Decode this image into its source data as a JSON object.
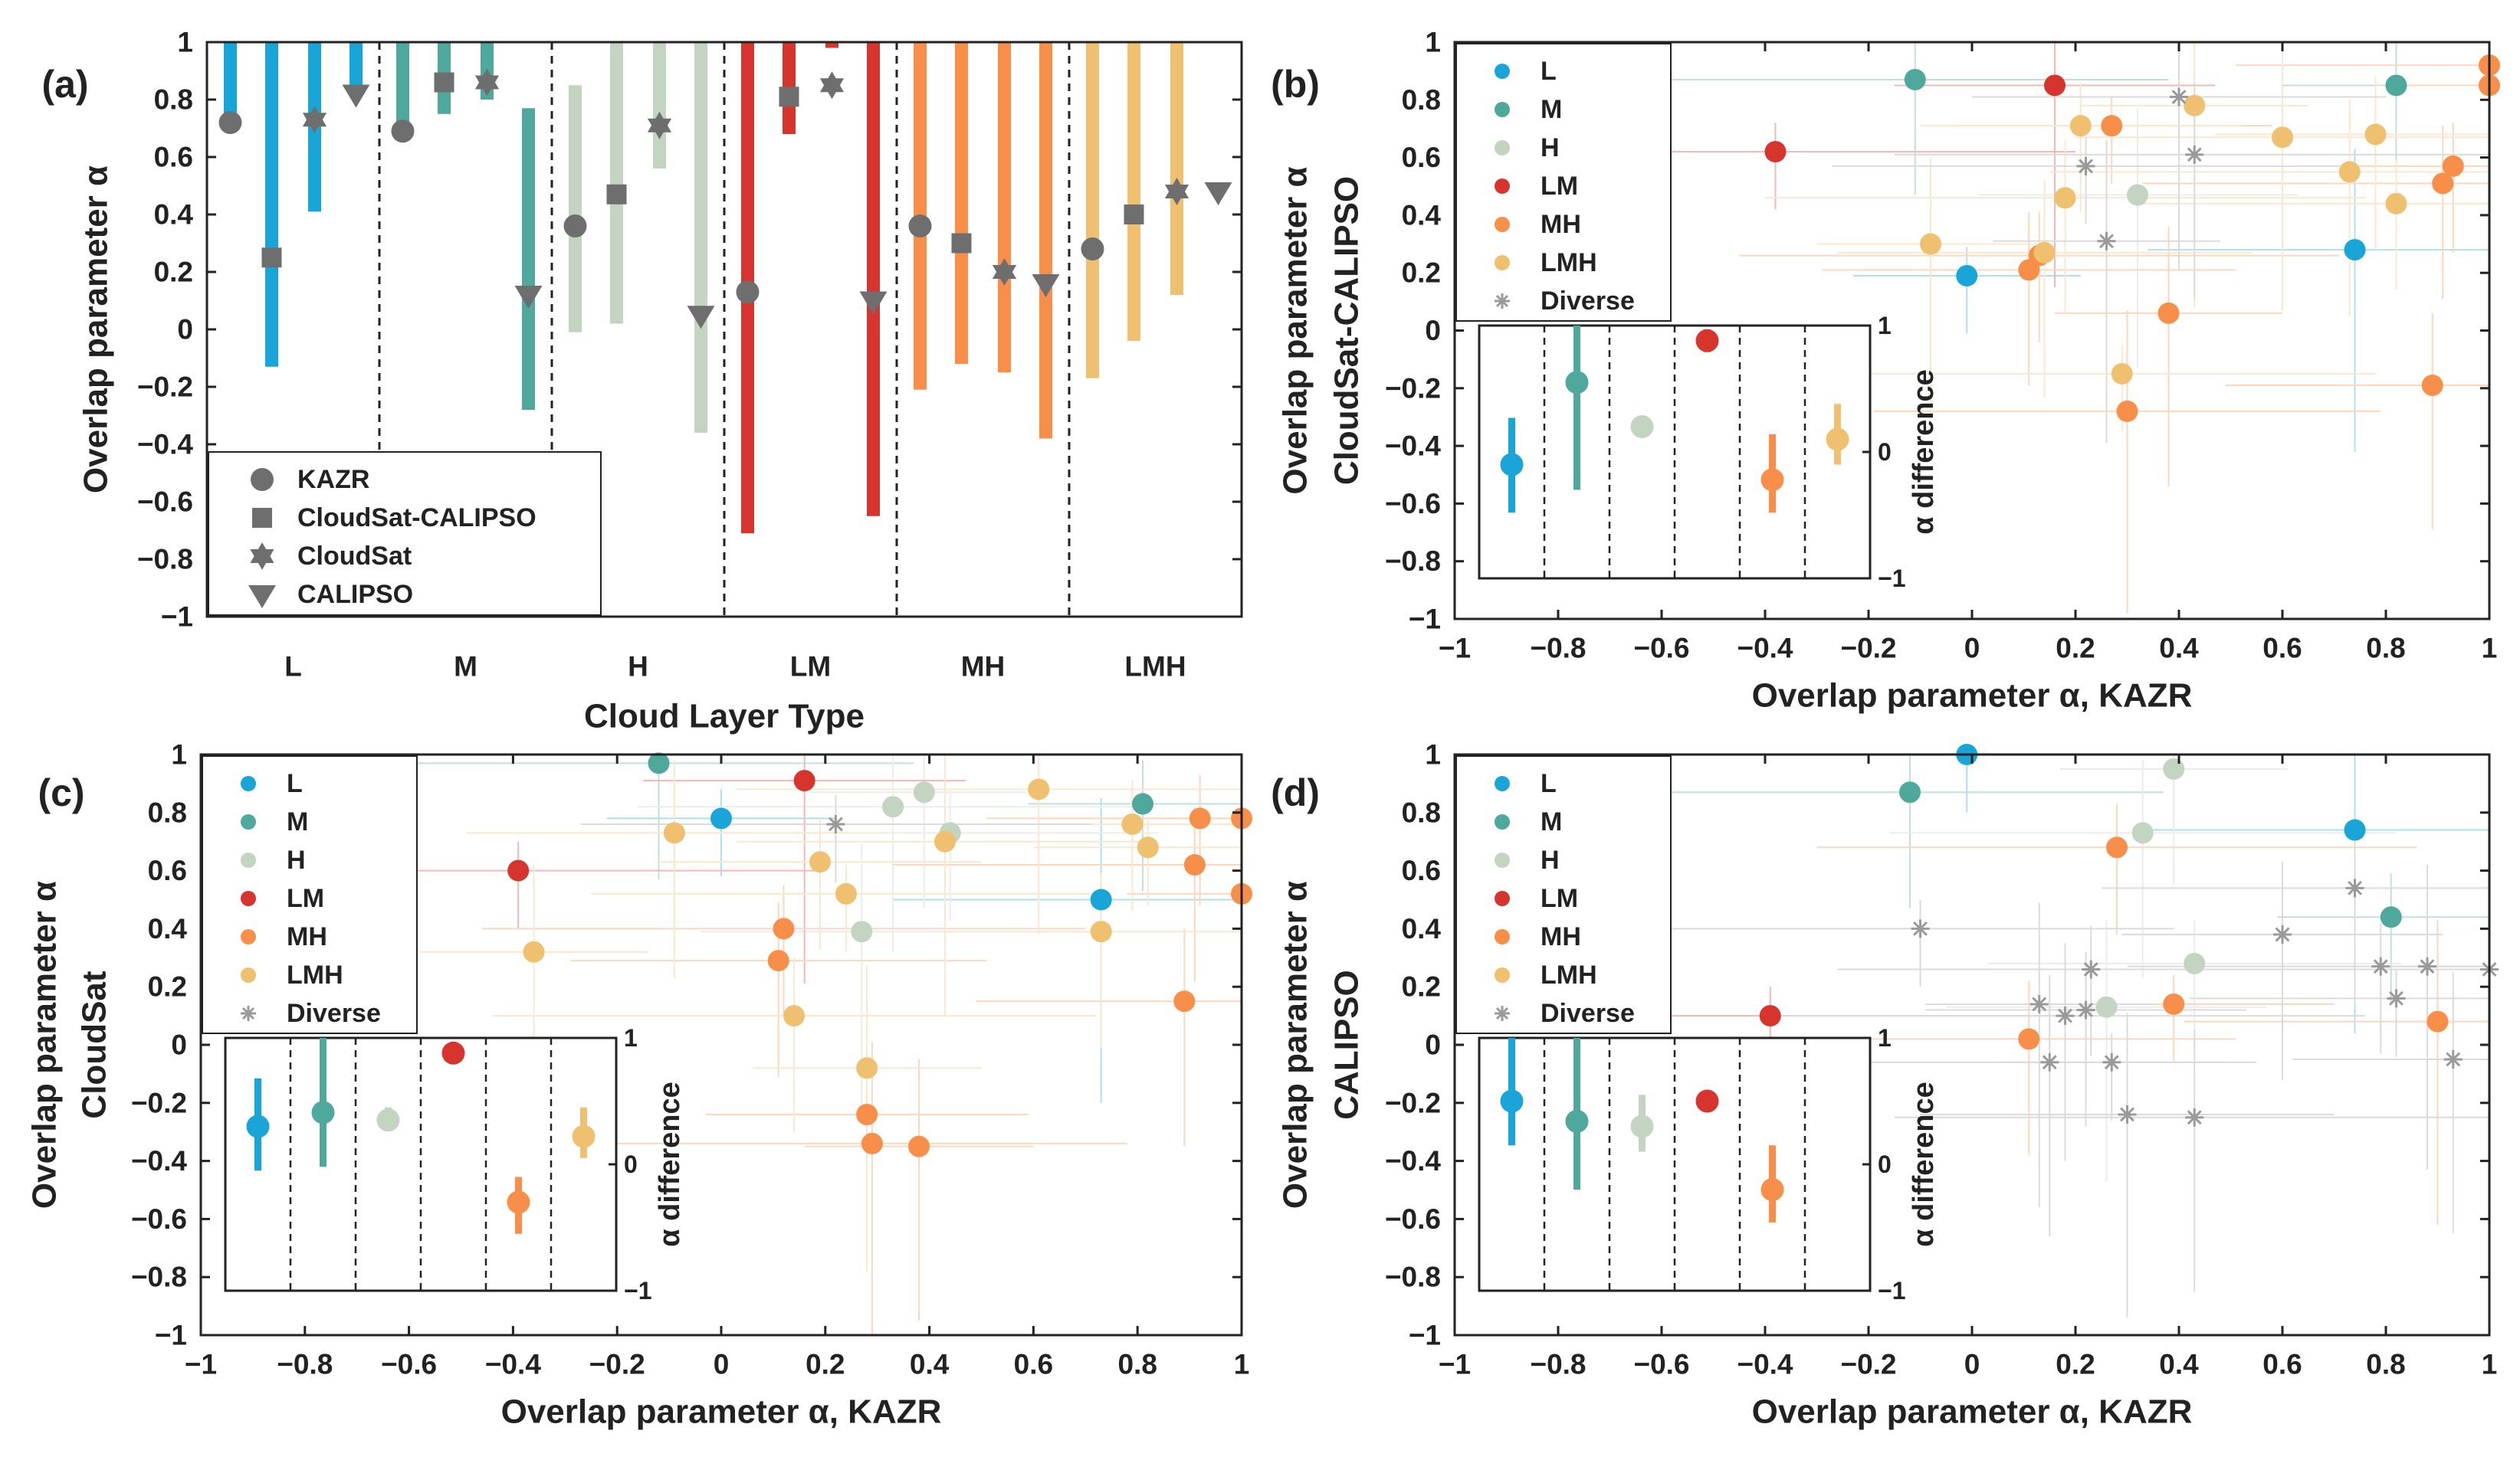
{
  "chart_data": [
    {
      "type": "range-bar",
      "panel_label": "(a)",
      "title": "",
      "xlabel": "Cloud Layer Type",
      "ylabel": "Overlap parameter α",
      "ylim": [
        -1,
        1
      ],
      "yticks": [
        "1",
        "0.8",
        "0.6",
        "0.4",
        "0.2",
        "0",
        "−0.2",
        "−0.4",
        "−0.6",
        "−0.8",
        "−1"
      ],
      "categories": [
        "L",
        "M",
        "H",
        "LM",
        "MH",
        "LMH"
      ],
      "category_colors": [
        "#1aa5d8",
        "#4fa89c",
        "#c3d4c0",
        "#d8342e",
        "#f78f4b",
        "#f0c071"
      ],
      "legend": [
        {
          "label": "KAZR",
          "marker": "circle"
        },
        {
          "label": "CloudSat-CALIPSO",
          "marker": "square"
        },
        {
          "label": "CloudSat",
          "marker": "star"
        },
        {
          "label": "CALIPSO",
          "marker": "triangle-down"
        }
      ],
      "series": [
        {
          "name": "KAZR",
          "marker": "circle",
          "values": [
            0.72,
            0.69,
            0.36,
            0.13,
            0.36,
            0.28
          ],
          "range_low": [
            0.72,
            0.69,
            -0.01,
            -0.71,
            -0.21,
            -0.17
          ],
          "range_high": [
            1,
            1,
            0.85,
            1,
            1,
            1
          ]
        },
        {
          "name": "CloudSat-CALIPSO",
          "marker": "square",
          "values": [
            0.25,
            0.86,
            0.47,
            0.81,
            0.3,
            0.4
          ],
          "range_low": [
            -0.13,
            0.75,
            0.02,
            0.68,
            -0.12,
            -0.04
          ],
          "range_high": [
            1,
            1,
            1,
            1,
            1,
            1
          ]
        },
        {
          "name": "CloudSat",
          "marker": "star",
          "values": [
            0.73,
            0.86,
            0.71,
            0.85,
            0.2,
            0.48
          ],
          "range_low": [
            0.41,
            0.8,
            0.56,
            0.98,
            -0.15,
            0.12
          ],
          "range_high": [
            1,
            1,
            1,
            1,
            1,
            1
          ]
        },
        {
          "name": "CALIPSO",
          "marker": "triangle-down",
          "values": [
            0.82,
            0.12,
            0.05,
            0.1,
            0.16,
            0.48
          ],
          "range_low": [
            0.82,
            -0.28,
            -0.36,
            -0.65,
            -0.38,
            0.48
          ],
          "range_high": [
            1,
            0.77,
            1,
            1,
            1,
            0.48
          ]
        }
      ]
    },
    {
      "type": "scatter",
      "panel_label": "(b)",
      "title": "",
      "xlabel": "Overlap parameter α, KAZR",
      "ylabel": [
        "Overlap parameter α",
        "CloudSat-CALIPSO"
      ],
      "xlim": [
        -1,
        1
      ],
      "ylim": [
        -1,
        1
      ],
      "xticks": [
        "−1",
        "−0.8",
        "−0.6",
        "−0.4",
        "−0.2",
        "0",
        "0.2",
        "0.4",
        "0.6",
        "0.8",
        "1"
      ],
      "yticks": [
        "1",
        "0.8",
        "0.6",
        "0.4",
        "0.2",
        "0",
        "−0.2",
        "−0.4",
        "−0.6",
        "−0.8",
        "−1"
      ],
      "legend": [
        "L",
        "M",
        "H",
        "LM",
        "MH",
        "LMH",
        "Diverse"
      ],
      "series": [
        {
          "name": "L",
          "color": "#1aa5d8",
          "points": [
            [
              -0.01,
              0.19
            ],
            [
              0.74,
              0.28
            ]
          ]
        },
        {
          "name": "M",
          "color": "#4fa89c",
          "points": [
            [
              -0.11,
              0.87
            ],
            [
              0.82,
              0.85
            ]
          ]
        },
        {
          "name": "H",
          "color": "#c3d4c0",
          "points": [
            [
              0.32,
              0.47
            ]
          ]
        },
        {
          "name": "LM",
          "color": "#d8342e",
          "points": [
            [
              -0.38,
              0.62
            ],
            [
              0.16,
              0.85
            ]
          ]
        },
        {
          "name": "MH",
          "color": "#f78f4b",
          "points": [
            [
              0.11,
              0.21
            ],
            [
              0.13,
              0.26
            ],
            [
              0.27,
              0.71
            ],
            [
              0.3,
              -0.28
            ],
            [
              0.38,
              0.06
            ],
            [
              0.89,
              -0.19
            ],
            [
              0.91,
              0.51
            ],
            [
              0.93,
              0.57
            ],
            [
              1.0,
              0.92
            ],
            [
              1.0,
              0.85
            ]
          ]
        },
        {
          "name": "LMH",
          "color": "#f0c071",
          "points": [
            [
              -0.08,
              0.3
            ],
            [
              0.14,
              0.27
            ],
            [
              0.18,
              0.46
            ],
            [
              0.21,
              0.71
            ],
            [
              0.29,
              -0.15
            ],
            [
              0.43,
              0.78
            ],
            [
              0.6,
              0.67
            ],
            [
              0.73,
              0.55
            ],
            [
              0.78,
              0.68
            ],
            [
              0.82,
              0.44
            ]
          ]
        },
        {
          "name": "Diverse",
          "color": "#9a9a9a",
          "points": [
            [
              0.22,
              0.57
            ],
            [
              0.26,
              0.31
            ],
            [
              0.4,
              0.81
            ],
            [
              0.43,
              0.61
            ]
          ]
        }
      ],
      "inset": {
        "ylabel": "α difference",
        "ylim": [
          -1,
          1
        ],
        "yticks": [
          "1",
          "0",
          "−1"
        ],
        "categories": [
          "L",
          "M",
          "H",
          "LM",
          "MH",
          "LMH"
        ],
        "means": [
          -0.1,
          0.55,
          0.2,
          0.88,
          -0.22,
          0.1
        ],
        "low": [
          -0.48,
          -0.3,
          0.2,
          0.79,
          -0.48,
          -0.1
        ],
        "high": [
          0.27,
          1.0,
          0.2,
          0.97,
          0.14,
          0.38
        ]
      }
    },
    {
      "type": "scatter",
      "panel_label": "(c)",
      "title": "",
      "xlabel": "Overlap parameter α, KAZR",
      "ylabel": [
        "Overlap parameter α",
        "CloudSat"
      ],
      "xlim": [
        -1,
        1
      ],
      "ylim": [
        -1,
        1
      ],
      "xticks": [
        "−1",
        "−0.8",
        "−0.6",
        "−0.4",
        "−0.2",
        "0",
        "0.2",
        "0.4",
        "0.6",
        "0.8",
        "1"
      ],
      "yticks": [
        "1",
        "0.8",
        "0.6",
        "0.4",
        "0.2",
        "0",
        "−0.2",
        "−0.4",
        "−0.6",
        "−0.8",
        "−1"
      ],
      "legend": [
        "L",
        "M",
        "H",
        "LM",
        "MH",
        "LMH",
        "Diverse"
      ],
      "series": [
        {
          "name": "L",
          "color": "#1aa5d8",
          "points": [
            [
              0.0,
              0.78
            ],
            [
              0.73,
              0.5
            ]
          ]
        },
        {
          "name": "M",
          "color": "#4fa89c",
          "points": [
            [
              -0.12,
              0.97
            ],
            [
              0.81,
              0.83
            ]
          ]
        },
        {
          "name": "H",
          "color": "#c3d4c0",
          "points": [
            [
              0.27,
              0.39
            ],
            [
              0.33,
              0.82
            ],
            [
              0.39,
              0.87
            ],
            [
              0.44,
              0.73
            ]
          ]
        },
        {
          "name": "LM",
          "color": "#d8342e",
          "points": [
            [
              -0.39,
              0.6
            ],
            [
              0.16,
              0.91
            ]
          ]
        },
        {
          "name": "MH",
          "color": "#f78f4b",
          "points": [
            [
              0.11,
              0.29
            ],
            [
              0.12,
              0.4
            ],
            [
              0.28,
              -0.24
            ],
            [
              0.29,
              -0.34
            ],
            [
              0.38,
              -0.35
            ],
            [
              0.89,
              0.15
            ],
            [
              0.91,
              0.62
            ],
            [
              0.92,
              0.78
            ],
            [
              1.0,
              0.78
            ],
            [
              1.0,
              0.52
            ]
          ]
        },
        {
          "name": "LMH",
          "color": "#f0c071",
          "points": [
            [
              -0.36,
              0.32
            ],
            [
              -0.09,
              0.73
            ],
            [
              0.14,
              0.1
            ],
            [
              0.19,
              0.63
            ],
            [
              0.24,
              0.52
            ],
            [
              0.28,
              -0.08
            ],
            [
              0.43,
              0.7
            ],
            [
              0.61,
              0.88
            ],
            [
              0.73,
              0.39
            ],
            [
              0.79,
              0.76
            ],
            [
              0.82,
              0.68
            ]
          ]
        },
        {
          "name": "Diverse",
          "color": "#9a9a9a",
          "points": [
            [
              0.22,
              0.76
            ]
          ]
        }
      ],
      "inset": {
        "ylabel": "α difference",
        "ylim": [
          -1,
          1
        ],
        "yticks": [
          "1",
          "0",
          "−1"
        ],
        "categories": [
          "L",
          "M",
          "H",
          "LM",
          "MH",
          "LMH"
        ],
        "means": [
          0.3,
          0.41,
          0.35,
          0.88,
          -0.3,
          0.22
        ],
        "low": [
          -0.05,
          -0.02,
          0.28,
          0.8,
          -0.55,
          0.05
        ],
        "high": [
          0.68,
          1.0,
          0.45,
          0.93,
          -0.1,
          0.45
        ]
      }
    },
    {
      "type": "scatter",
      "panel_label": "(d)",
      "title": "",
      "xlabel": "Overlap parameter α, KAZR",
      "ylabel": [
        "Overlap parameter α",
        "CALIPSO"
      ],
      "xlim": [
        -1,
        1
      ],
      "ylim": [
        -1,
        1
      ],
      "xticks": [
        "−1",
        "−0.8",
        "−0.6",
        "−0.4",
        "−0.2",
        "0",
        "0.2",
        "0.4",
        "0.6",
        "0.8",
        "1"
      ],
      "yticks": [
        "1",
        "0.8",
        "0.6",
        "0.4",
        "0.2",
        "0",
        "−0.2",
        "−0.4",
        "−0.6",
        "−0.8",
        "−1"
      ],
      "legend": [
        "L",
        "M",
        "H",
        "LM",
        "MH",
        "LMH",
        "Diverse"
      ],
      "series": [
        {
          "name": "L",
          "color": "#1aa5d8",
          "points": [
            [
              -0.01,
              1.0
            ],
            [
              0.74,
              0.74
            ]
          ]
        },
        {
          "name": "M",
          "color": "#4fa89c",
          "points": [
            [
              -0.12,
              0.87
            ],
            [
              0.81,
              0.44
            ]
          ]
        },
        {
          "name": "H",
          "color": "#c3d4c0",
          "points": [
            [
              0.26,
              0.13
            ],
            [
              0.33,
              0.73
            ],
            [
              0.39,
              0.95
            ],
            [
              0.43,
              0.28
            ]
          ]
        },
        {
          "name": "LM",
          "color": "#d8342e",
          "points": [
            [
              -0.39,
              0.1
            ]
          ]
        },
        {
          "name": "MH",
          "color": "#f78f4b",
          "points": [
            [
              0.11,
              0.02
            ],
            [
              0.28,
              0.68
            ],
            [
              0.39,
              0.14
            ],
            [
              0.9,
              0.08
            ]
          ]
        },
        {
          "name": "LMH",
          "color": "#f0c071",
          "points": []
        },
        {
          "name": "Diverse",
          "color": "#9a9a9a",
          "points": [
            [
              -0.1,
              0.4
            ],
            [
              0.13,
              0.14
            ],
            [
              0.15,
              -0.06
            ],
            [
              0.18,
              0.1
            ],
            [
              0.22,
              0.12
            ],
            [
              0.23,
              0.26
            ],
            [
              0.27,
              -0.06
            ],
            [
              0.3,
              -0.24
            ],
            [
              0.43,
              -0.25
            ],
            [
              0.6,
              0.38
            ],
            [
              0.74,
              0.54
            ],
            [
              0.79,
              0.27
            ],
            [
              0.82,
              0.16
            ],
            [
              0.88,
              0.27
            ],
            [
              0.93,
              -0.05
            ],
            [
              1.0,
              0.26
            ]
          ]
        }
      ],
      "inset": {
        "ylabel": "α difference",
        "ylim": [
          -1,
          1
        ],
        "yticks": [
          "1",
          "0",
          "−1"
        ],
        "categories": [
          "L",
          "M",
          "H",
          "LM",
          "MH",
          "LMH"
        ],
        "means": [
          0.5,
          0.34,
          0.3,
          0.5,
          -0.2,
          null
        ],
        "low": [
          0.15,
          -0.2,
          0.1,
          0.5,
          -0.46,
          null
        ],
        "high": [
          1.0,
          1.0,
          0.55,
          0.5,
          0.15,
          null
        ]
      }
    }
  ]
}
